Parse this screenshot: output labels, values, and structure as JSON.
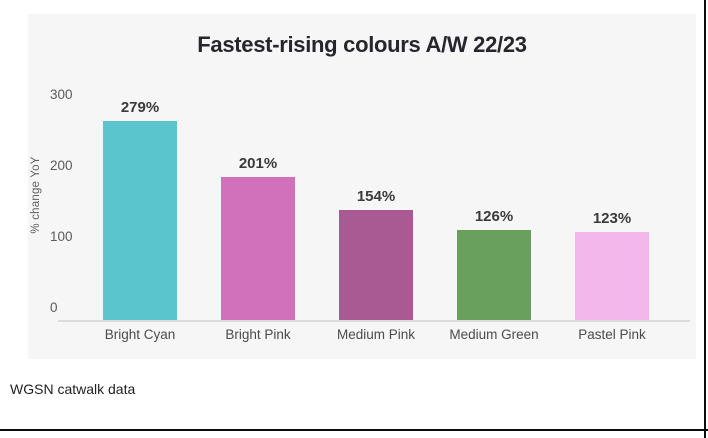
{
  "page": {
    "source_note": "WGSN catwalk data"
  },
  "frame": {
    "border_color": "#0c0c0c"
  },
  "chart_data": {
    "type": "bar",
    "title": "Fastest-rising colours A/W 22/23",
    "xlabel": "",
    "ylabel": "% change YoY",
    "categories": [
      "Bright Cyan",
      "Bright Pink",
      "Medium Pink",
      "Medium Green",
      "Pastel Pink"
    ],
    "values": [
      279,
      201,
      154,
      126,
      123
    ],
    "value_labels": [
      "279%",
      "201%",
      "154%",
      "126%",
      "123%"
    ],
    "bar_colors": [
      "#5bc5ce",
      "#d271bb",
      "#a95a93",
      "#6aa05e",
      "#f4b7ec"
    ],
    "ytick_labels": [
      "300",
      "200",
      "100",
      "0"
    ],
    "ytick_values": [
      300,
      200,
      100,
      0
    ],
    "ylim": [
      0,
      300
    ],
    "grid": false,
    "legend": false,
    "panel_background": "#f6f6f6",
    "title_color": "#27262c",
    "label_color": "#4b4b4b",
    "tick_color": "#5a5a5a"
  }
}
